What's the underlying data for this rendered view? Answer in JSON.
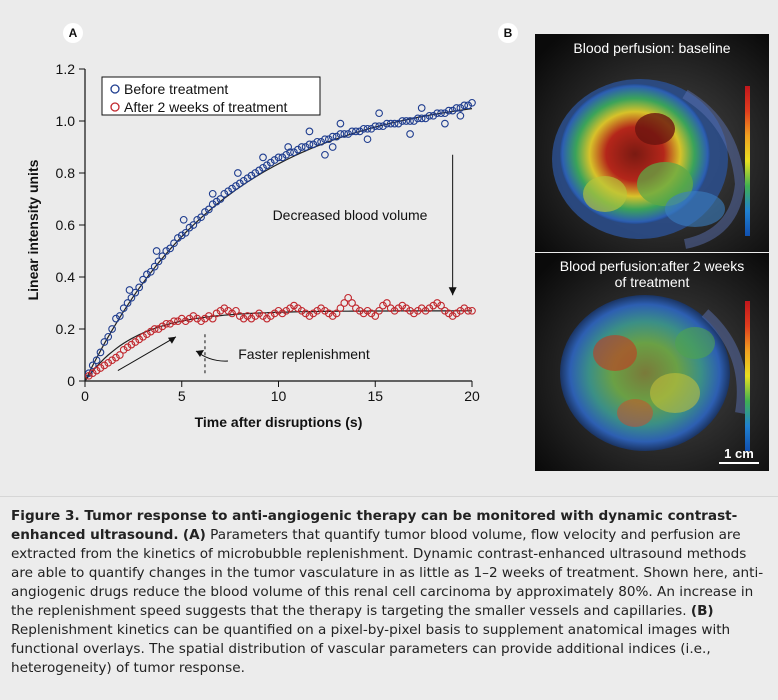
{
  "panels": {
    "a_label": "A",
    "b_label": "B"
  },
  "chart_data": {
    "type": "scatter",
    "xlabel": "Time after disruptions (s)",
    "ylabel": "Linear intensity units",
    "xlim": [
      0,
      20
    ],
    "ylim": [
      0,
      1.2
    ],
    "x_ticks": [
      "0",
      "5",
      "10",
      "15",
      "20"
    ],
    "y_ticks": [
      "0",
      "0.2",
      "0.4",
      "0.6",
      "0.8",
      "1.0",
      "1.2"
    ],
    "legend_position": "top-left",
    "series": [
      {
        "name": "Before treatment",
        "color": "#1f3d8f",
        "marker": "open-circle",
        "fit": {
          "model": "A*(1-exp(-t/tau))",
          "A": 1.12,
          "tau": 7.3
        },
        "points": [
          [
            0.2,
            0.03
          ],
          [
            0.4,
            0.06
          ],
          [
            0.6,
            0.08
          ],
          [
            0.8,
            0.11
          ],
          [
            1.0,
            0.15
          ],
          [
            1.2,
            0.17
          ],
          [
            1.4,
            0.2
          ],
          [
            1.6,
            0.24
          ],
          [
            1.8,
            0.25
          ],
          [
            2.0,
            0.28
          ],
          [
            2.2,
            0.3
          ],
          [
            2.4,
            0.32
          ],
          [
            2.6,
            0.34
          ],
          [
            2.8,
            0.36
          ],
          [
            3.0,
            0.39
          ],
          [
            3.2,
            0.41
          ],
          [
            3.4,
            0.42
          ],
          [
            3.6,
            0.44
          ],
          [
            3.8,
            0.46
          ],
          [
            4.0,
            0.48
          ],
          [
            4.2,
            0.5
          ],
          [
            4.4,
            0.51
          ],
          [
            4.6,
            0.53
          ],
          [
            4.8,
            0.55
          ],
          [
            5.0,
            0.56
          ],
          [
            5.2,
            0.57
          ],
          [
            5.4,
            0.59
          ],
          [
            5.6,
            0.6
          ],
          [
            5.8,
            0.62
          ],
          [
            6.0,
            0.63
          ],
          [
            6.2,
            0.65
          ],
          [
            6.4,
            0.66
          ],
          [
            6.6,
            0.68
          ],
          [
            6.8,
            0.69
          ],
          [
            7.0,
            0.7
          ],
          [
            7.2,
            0.72
          ],
          [
            7.4,
            0.73
          ],
          [
            7.6,
            0.74
          ],
          [
            7.8,
            0.75
          ],
          [
            8.0,
            0.76
          ],
          [
            8.2,
            0.77
          ],
          [
            8.4,
            0.78
          ],
          [
            8.6,
            0.79
          ],
          [
            8.8,
            0.8
          ],
          [
            9.0,
            0.81
          ],
          [
            9.2,
            0.82
          ],
          [
            9.4,
            0.83
          ],
          [
            9.6,
            0.84
          ],
          [
            9.8,
            0.85
          ],
          [
            10.0,
            0.86
          ],
          [
            10.2,
            0.86
          ],
          [
            10.4,
            0.87
          ],
          [
            10.6,
            0.88
          ],
          [
            10.8,
            0.88
          ],
          [
            11.0,
            0.89
          ],
          [
            11.2,
            0.9
          ],
          [
            11.4,
            0.9
          ],
          [
            11.6,
            0.91
          ],
          [
            11.8,
            0.91
          ],
          [
            12.0,
            0.92
          ],
          [
            12.2,
            0.92
          ],
          [
            12.4,
            0.93
          ],
          [
            12.6,
            0.93
          ],
          [
            12.8,
            0.94
          ],
          [
            13.0,
            0.94
          ],
          [
            13.2,
            0.95
          ],
          [
            13.4,
            0.95
          ],
          [
            13.6,
            0.95
          ],
          [
            13.8,
            0.96
          ],
          [
            14.0,
            0.96
          ],
          [
            14.2,
            0.96
          ],
          [
            14.4,
            0.97
          ],
          [
            14.6,
            0.97
          ],
          [
            14.8,
            0.97
          ],
          [
            15.0,
            0.98
          ],
          [
            15.2,
            0.98
          ],
          [
            15.4,
            0.98
          ],
          [
            15.6,
            0.99
          ],
          [
            15.8,
            0.99
          ],
          [
            16.0,
            0.99
          ],
          [
            16.2,
            0.99
          ],
          [
            16.4,
            1.0
          ],
          [
            16.6,
            1.0
          ],
          [
            16.8,
            1.0
          ],
          [
            17.0,
            1.0
          ],
          [
            17.2,
            1.01
          ],
          [
            17.4,
            1.01
          ],
          [
            17.6,
            1.01
          ],
          [
            17.8,
            1.02
          ],
          [
            18.0,
            1.02
          ],
          [
            18.2,
            1.03
          ],
          [
            18.4,
            1.03
          ],
          [
            18.6,
            1.03
          ],
          [
            18.8,
            1.04
          ],
          [
            19.0,
            1.04
          ],
          [
            19.2,
            1.05
          ],
          [
            19.4,
            1.05
          ],
          [
            19.6,
            1.06
          ],
          [
            19.8,
            1.06
          ],
          [
            20.0,
            1.07
          ],
          [
            9.2,
            0.86
          ],
          [
            10.5,
            0.9
          ],
          [
            11.6,
            0.96
          ],
          [
            12.4,
            0.87
          ],
          [
            13.2,
            0.99
          ],
          [
            14.6,
            0.93
          ],
          [
            15.2,
            1.03
          ],
          [
            16.8,
            0.95
          ],
          [
            17.4,
            1.05
          ],
          [
            18.6,
            0.99
          ],
          [
            19.4,
            1.02
          ],
          [
            12.8,
            0.9
          ],
          [
            7.9,
            0.8
          ],
          [
            6.6,
            0.72
          ],
          [
            5.1,
            0.62
          ],
          [
            3.7,
            0.5
          ],
          [
            2.3,
            0.35
          ]
        ]
      },
      {
        "name": "After 2 weeks of treatment",
        "color": "#c1272d",
        "marker": "open-circle",
        "fit": {
          "model": "A*(1-exp(-t/tau))",
          "A": 0.27,
          "tau": 2.6
        },
        "points": [
          [
            0.2,
            0.02
          ],
          [
            0.4,
            0.03
          ],
          [
            0.6,
            0.04
          ],
          [
            0.8,
            0.05
          ],
          [
            1.0,
            0.06
          ],
          [
            1.2,
            0.07
          ],
          [
            1.4,
            0.08
          ],
          [
            1.6,
            0.09
          ],
          [
            1.8,
            0.1
          ],
          [
            2.0,
            0.12
          ],
          [
            2.2,
            0.13
          ],
          [
            2.4,
            0.14
          ],
          [
            2.6,
            0.15
          ],
          [
            2.8,
            0.16
          ],
          [
            3.0,
            0.17
          ],
          [
            3.2,
            0.18
          ],
          [
            3.4,
            0.19
          ],
          [
            3.6,
            0.2
          ],
          [
            3.8,
            0.2
          ],
          [
            4.0,
            0.21
          ],
          [
            4.2,
            0.22
          ],
          [
            4.4,
            0.22
          ],
          [
            4.6,
            0.23
          ],
          [
            4.8,
            0.23
          ],
          [
            5.0,
            0.24
          ],
          [
            5.2,
            0.23
          ],
          [
            5.4,
            0.24
          ],
          [
            5.6,
            0.25
          ],
          [
            5.8,
            0.24
          ],
          [
            6.0,
            0.23
          ],
          [
            6.2,
            0.24
          ],
          [
            6.4,
            0.25
          ],
          [
            6.6,
            0.24
          ],
          [
            6.8,
            0.26
          ],
          [
            7.0,
            0.27
          ],
          [
            7.2,
            0.28
          ],
          [
            7.4,
            0.27
          ],
          [
            7.6,
            0.26
          ],
          [
            7.8,
            0.27
          ],
          [
            8.0,
            0.25
          ],
          [
            8.2,
            0.24
          ],
          [
            8.4,
            0.25
          ],
          [
            8.6,
            0.24
          ],
          [
            8.8,
            0.25
          ],
          [
            9.0,
            0.26
          ],
          [
            9.2,
            0.25
          ],
          [
            9.4,
            0.24
          ],
          [
            9.6,
            0.25
          ],
          [
            9.8,
            0.26
          ],
          [
            10.0,
            0.27
          ],
          [
            10.2,
            0.26
          ],
          [
            10.4,
            0.27
          ],
          [
            10.6,
            0.28
          ],
          [
            10.8,
            0.29
          ],
          [
            11.0,
            0.28
          ],
          [
            11.2,
            0.27
          ],
          [
            11.4,
            0.26
          ],
          [
            11.6,
            0.25
          ],
          [
            11.8,
            0.26
          ],
          [
            12.0,
            0.27
          ],
          [
            12.2,
            0.28
          ],
          [
            12.4,
            0.27
          ],
          [
            12.6,
            0.26
          ],
          [
            12.8,
            0.25
          ],
          [
            13.0,
            0.26
          ],
          [
            13.2,
            0.28
          ],
          [
            13.4,
            0.3
          ],
          [
            13.6,
            0.32
          ],
          [
            13.8,
            0.3
          ],
          [
            14.0,
            0.28
          ],
          [
            14.2,
            0.27
          ],
          [
            14.4,
            0.26
          ],
          [
            14.6,
            0.27
          ],
          [
            14.8,
            0.26
          ],
          [
            15.0,
            0.25
          ],
          [
            15.2,
            0.27
          ],
          [
            15.4,
            0.29
          ],
          [
            15.6,
            0.3
          ],
          [
            15.8,
            0.28
          ],
          [
            16.0,
            0.27
          ],
          [
            16.2,
            0.28
          ],
          [
            16.4,
            0.29
          ],
          [
            16.6,
            0.28
          ],
          [
            16.8,
            0.27
          ],
          [
            17.0,
            0.26
          ],
          [
            17.2,
            0.27
          ],
          [
            17.4,
            0.28
          ],
          [
            17.6,
            0.27
          ],
          [
            17.8,
            0.28
          ],
          [
            18.0,
            0.29
          ],
          [
            18.2,
            0.3
          ],
          [
            18.4,
            0.29
          ],
          [
            18.6,
            0.27
          ],
          [
            18.8,
            0.26
          ],
          [
            19.0,
            0.25
          ],
          [
            19.2,
            0.26
          ],
          [
            19.4,
            0.27
          ],
          [
            19.6,
            0.28
          ],
          [
            19.8,
            0.27
          ],
          [
            20.0,
            0.27
          ]
        ]
      }
    ],
    "annotations": {
      "decreased": "Decreased blood volume",
      "faster": "Faster replenishment"
    }
  },
  "panel_b": {
    "top_title": "Blood perfusion: baseline",
    "bottom_title_line1": "Blood perfusion:after 2 weeks",
    "bottom_title_line2": "of treatment",
    "scale_label": "1 cm"
  },
  "caption": {
    "lead": "Figure 3. Tumor response to anti-angiogenic therapy can be monitored with dynamic contrast-enhanced ultrasound.",
    "a_tag": "(A)",
    "a_text": "Parameters that quantify tumor blood volume, flow velocity and perfusion are extracted from the kinetics of microbubble replenishment. Dynamic contrast-enhanced ultrasound methods are able to quantify changes in the tumor vasculature in as little as 1–2 weeks of treatment. Shown here, anti-angiogenic drugs reduce the blood volume of this renal cell carcinoma by approximately 80%. An increase in the replenishment speed suggests that the therapy is targeting the smaller vessels and capillaries.",
    "b_tag": "(B)",
    "b_text": "Replenishment kinetics can be quantified on a pixel-by-pixel basis to supplement anatomical images with functional overlays. The spatial distribution of vascular parameters can provide additional indices (i.e., heterogeneity) of tumor response."
  }
}
